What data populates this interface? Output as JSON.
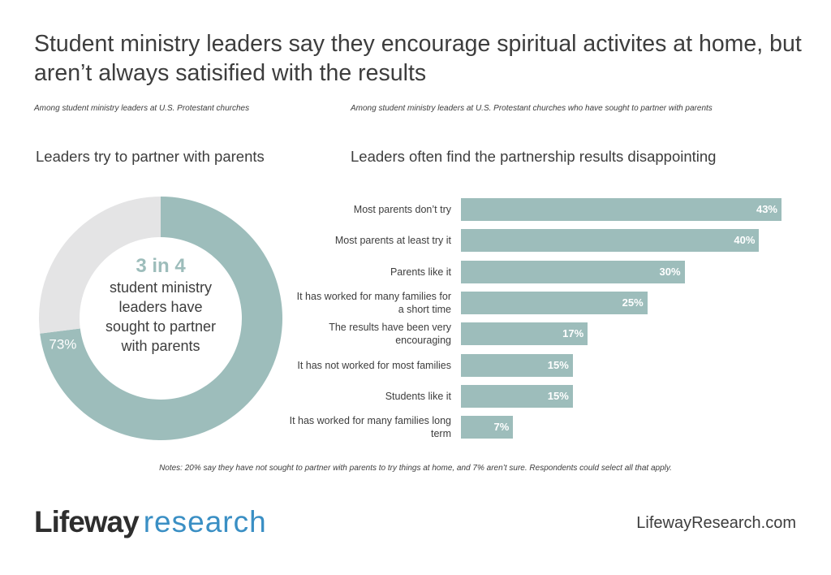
{
  "title": "Student ministry leaders say they encourage spiritual activites at home, but aren’t always satisified with the results",
  "chart_data": [
    {
      "type": "pie",
      "hole": true,
      "subtitle": "Among student ministry leaders at U.S. Protestant churches",
      "title": "Leaders try to partner with parents",
      "categories": [
        null,
        null
      ],
      "values": [
        73,
        27
      ],
      "value_labels": [
        "73%",
        null
      ],
      "colors": [
        "#9dbdbb",
        "#e4e4e5"
      ],
      "center_label": {
        "headline": "3 in 4",
        "text": "student ministry leaders have sought to partner with parents"
      }
    },
    {
      "type": "bar",
      "orientation": "horizontal",
      "subtitle": "Among student ministry leaders at U.S. Protestant churches who have sought to partner with parents",
      "title": "Leaders often find the partnership results disappointing",
      "categories": [
        "Most parents don’t try",
        "Most parents at least try it",
        "Parents like it",
        "It has worked for many families for a short time",
        "The results have been very encouraging",
        "It has not worked for most families",
        "Students like it",
        "It has worked for many families long term"
      ],
      "values": [
        43,
        40,
        30,
        25,
        17,
        15,
        15,
        7
      ],
      "value_labels": [
        "43%",
        "40%",
        "30%",
        "25%",
        "17%",
        "15%",
        "15%",
        "7%"
      ],
      "color": "#9dbdbb"
    }
  ],
  "notes": "Notes: 20% say they have not sought to partner with parents to try things at home, and 7% aren’t sure. Respondents could select all that apply.",
  "logo": {
    "brand": "Lifeway",
    "product": "research"
  },
  "url": "LifewayResearch.com"
}
